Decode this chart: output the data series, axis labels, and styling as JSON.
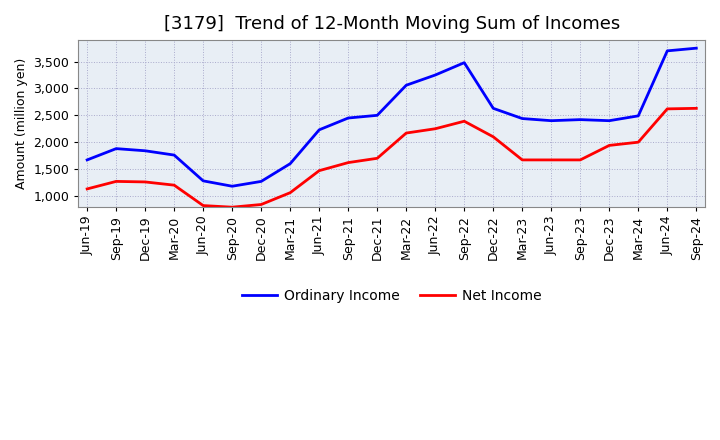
{
  "title": "[3179]  Trend of 12-Month Moving Sum of Incomes",
  "ylabel": "Amount (million yen)",
  "x_labels": [
    "Jun-19",
    "Sep-19",
    "Dec-19",
    "Mar-20",
    "Jun-20",
    "Sep-20",
    "Dec-20",
    "Mar-21",
    "Jun-21",
    "Sep-21",
    "Dec-21",
    "Mar-22",
    "Jun-22",
    "Sep-22",
    "Dec-22",
    "Mar-23",
    "Jun-23",
    "Sep-23",
    "Dec-23",
    "Mar-24",
    "Jun-24",
    "Sep-24"
  ],
  "ordinary_income": [
    1670,
    1880,
    1840,
    1760,
    1280,
    1180,
    1270,
    1600,
    2230,
    2450,
    2500,
    3060,
    3250,
    3480,
    2630,
    2440,
    2400,
    2420,
    2400,
    2490,
    3700,
    3750
  ],
  "net_income": [
    1130,
    1270,
    1260,
    1200,
    820,
    790,
    840,
    1060,
    1470,
    1620,
    1700,
    2170,
    2250,
    2390,
    2100,
    1670,
    1670,
    1670,
    1940,
    2000,
    2620,
    2630
  ],
  "ordinary_color": "#0000ff",
  "net_color": "#ff0000",
  "ylim": [
    800,
    3900
  ],
  "yticks": [
    1000,
    1500,
    2000,
    2500,
    3000,
    3500
  ],
  "plot_bg_color": "#e8eef5",
  "background_color": "#ffffff",
  "grid_color": "#aaaacc",
  "title_fontsize": 13,
  "axis_fontsize": 9,
  "tick_fontsize": 9,
  "legend_fontsize": 10
}
